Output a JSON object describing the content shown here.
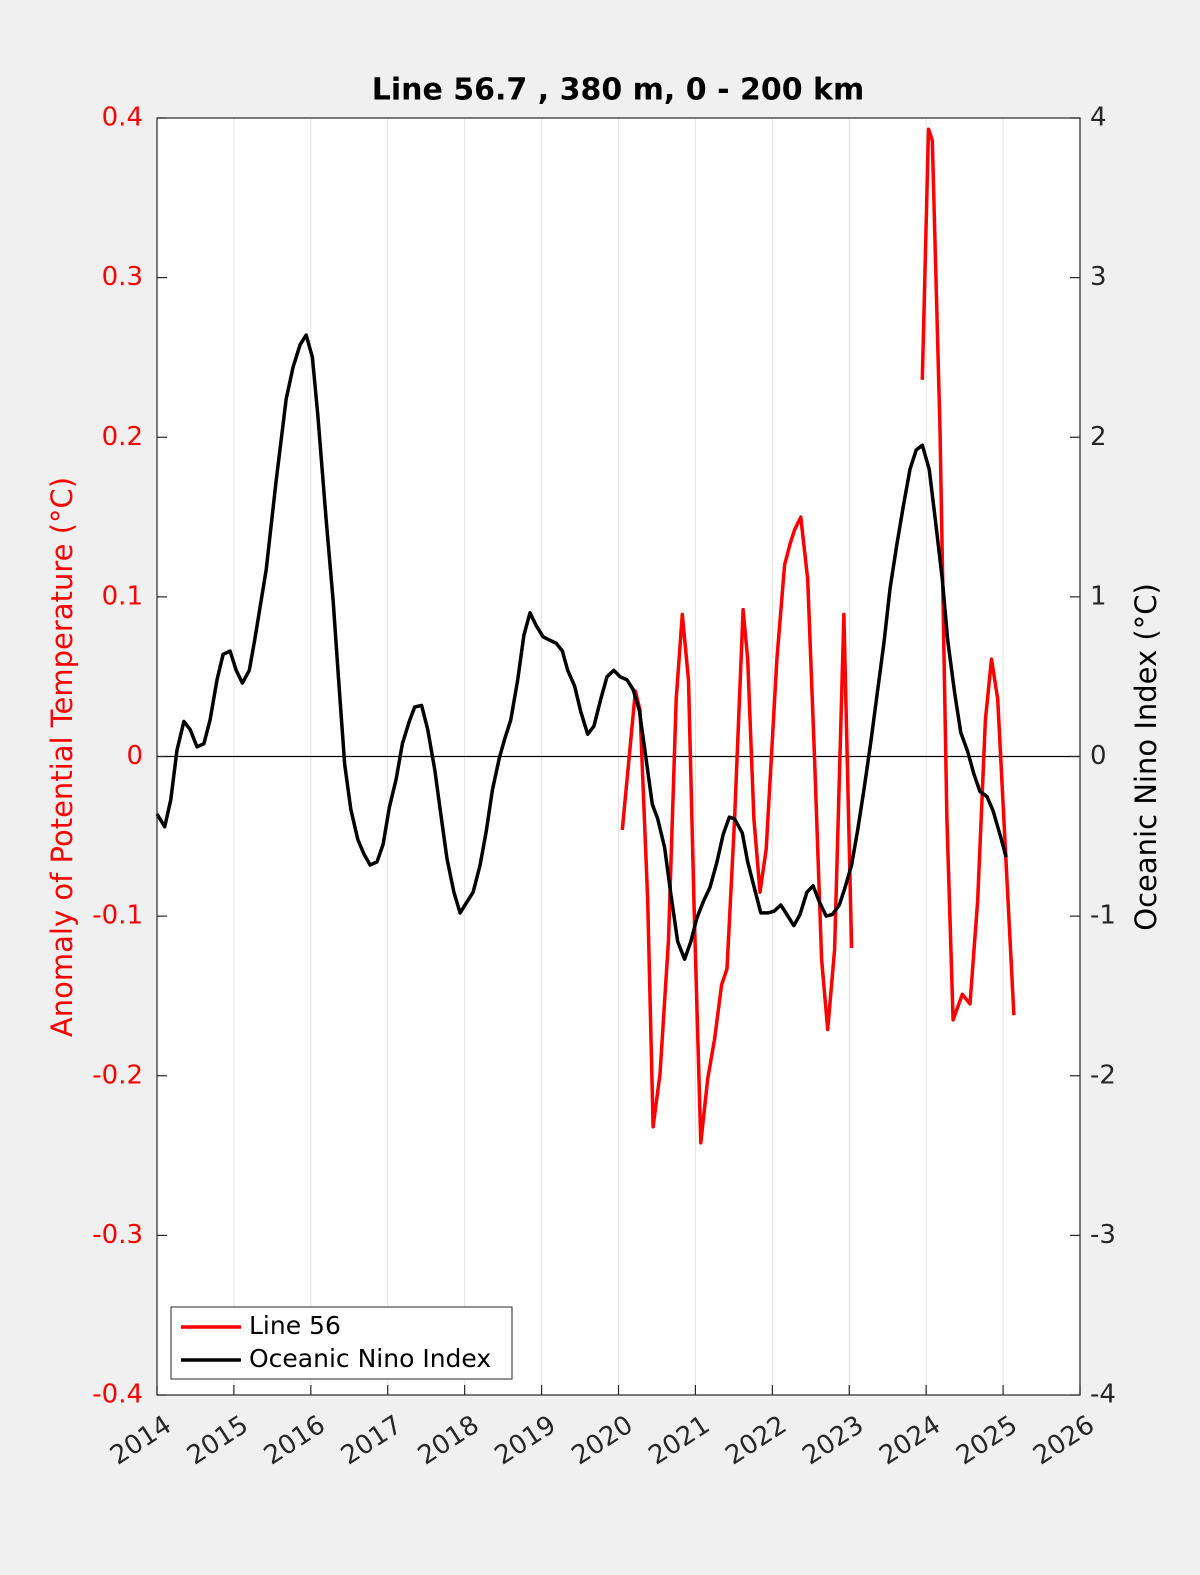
{
  "chart_data": {
    "type": "line",
    "title": "Line 56.7 , 380 m, 0 - 200 km",
    "y_label": "Anomaly of Potential Temperature (°C)",
    "y2_label": "Oceanic Nino Index (°C)",
    "xlim": [
      2014,
      2026
    ],
    "xticks": [
      2014,
      2015,
      2016,
      2017,
      2018,
      2019,
      2020,
      2021,
      2022,
      2023,
      2024,
      2025,
      2026
    ],
    "ylim": [
      -0.4,
      0.4
    ],
    "yticks": [
      -0.4,
      -0.3,
      -0.2,
      -0.1,
      0,
      0.1,
      0.2,
      0.3,
      0.4
    ],
    "y2lim": [
      -4,
      4
    ],
    "y2ticks": [
      -4,
      -3,
      -2,
      -1,
      0,
      1,
      2,
      3,
      4
    ],
    "grid": "x",
    "zero_line": true,
    "legend": "lower left",
    "y_axis_color": "#ff0000",
    "y2_axis_color": "#000000",
    "series": [
      {
        "name": "Line 56",
        "color": "#ff0000",
        "axis": "y",
        "x": [
          2020.05,
          2020.22,
          2020.28,
          2020.38,
          2020.45,
          2020.54,
          2020.65,
          2020.75,
          2020.83,
          2020.91,
          2020.98,
          2021.07,
          2021.16,
          2021.25,
          2021.34,
          2021.41,
          2021.51,
          2021.62,
          2021.68,
          2021.76,
          2021.84,
          2021.92,
          2022.06,
          2022.16,
          2022.23,
          2022.29,
          2022.37,
          2022.46,
          2022.55,
          2022.64,
          2022.72,
          2022.81,
          2022.93,
          2023.03,
          2023.5,
          2023.95,
          2024.03,
          2024.08,
          2024.18,
          2024.27,
          2024.35,
          2024.47,
          2024.57,
          2024.67,
          2024.77,
          2024.85,
          2024.93,
          2025.03,
          2025.14
        ],
        "values": [
          -0.046,
          0.041,
          0.029,
          -0.09,
          -0.232,
          -0.199,
          -0.115,
          0.036,
          0.089,
          0.048,
          -0.09,
          -0.242,
          -0.202,
          -0.177,
          -0.143,
          -0.133,
          -0.039,
          0.092,
          0.061,
          -0.039,
          -0.085,
          -0.058,
          0.061,
          0.12,
          0.133,
          0.142,
          0.15,
          0.111,
          -0.002,
          -0.127,
          -0.171,
          -0.121,
          0.089,
          -0.12,
          null,
          0.236,
          0.393,
          0.386,
          0.205,
          -0.039,
          -0.165,
          -0.149,
          -0.155,
          -0.09,
          0.023,
          0.061,
          0.036,
          -0.058,
          -0.162
        ]
      },
      {
        "name": "Oceanic Nino Index",
        "color": "#000000",
        "axis": "y2",
        "x": [
          2014.0,
          2014.1,
          2014.18,
          2014.26,
          2014.35,
          2014.43,
          2014.52,
          2014.61,
          2014.69,
          2014.78,
          2014.86,
          2014.95,
          2015.03,
          2015.11,
          2015.2,
          2015.27,
          2015.42,
          2015.55,
          2015.68,
          2015.77,
          2015.86,
          2015.94,
          2016.02,
          2016.09,
          2016.2,
          2016.29,
          2016.37,
          2016.44,
          2016.52,
          2016.61,
          2016.69,
          2016.77,
          2016.86,
          2016.94,
          2017.02,
          2017.11,
          2017.19,
          2017.28,
          2017.35,
          2017.44,
          2017.52,
          2017.61,
          2017.69,
          2017.77,
          2017.86,
          2017.94,
          2018.03,
          2018.11,
          2018.2,
          2018.28,
          2018.36,
          2018.45,
          2018.52,
          2018.6,
          2018.69,
          2018.77,
          2018.85,
          2018.93,
          2019.02,
          2019.1,
          2019.19,
          2019.27,
          2019.34,
          2019.43,
          2019.51,
          2019.6,
          2019.68,
          2019.77,
          2019.85,
          2019.94,
          2020.02,
          2020.11,
          2020.19,
          2020.27,
          2020.36,
          2020.44,
          2020.51,
          2020.6,
          2020.68,
          2020.77,
          2020.86,
          2020.94,
          2021.02,
          2021.11,
          2021.19,
          2021.28,
          2021.36,
          2021.44,
          2021.51,
          2021.61,
          2021.68,
          2021.77,
          2021.85,
          2021.94,
          2022.02,
          2022.11,
          2022.19,
          2022.28,
          2022.36,
          2022.45,
          2022.53,
          2022.61,
          2022.7,
          2022.78,
          2022.87,
          2022.94,
          2023.03,
          2023.11,
          2023.19,
          2023.28,
          2023.36,
          2023.45,
          2023.53,
          2023.62,
          2023.7,
          2023.79,
          2023.87,
          2023.95,
          2024.04,
          2024.12,
          2024.21,
          2024.28,
          2024.37,
          2024.45,
          2024.54,
          2024.62,
          2024.7,
          2024.79,
          2024.87,
          2024.96,
          2025.04
        ],
        "values": [
          -0.36,
          -0.44,
          -0.27,
          0.04,
          0.22,
          0.17,
          0.06,
          0.08,
          0.23,
          0.48,
          0.64,
          0.66,
          0.54,
          0.46,
          0.54,
          0.73,
          1.17,
          1.73,
          2.24,
          2.44,
          2.58,
          2.64,
          2.5,
          2.14,
          1.48,
          0.98,
          0.42,
          -0.05,
          -0.33,
          -0.52,
          -0.61,
          -0.68,
          -0.66,
          -0.55,
          -0.32,
          -0.14,
          0.08,
          0.22,
          0.31,
          0.32,
          0.17,
          -0.08,
          -0.36,
          -0.64,
          -0.85,
          -0.98,
          -0.91,
          -0.85,
          -0.68,
          -0.47,
          -0.21,
          -0.01,
          0.11,
          0.23,
          0.48,
          0.76,
          0.9,
          0.82,
          0.75,
          0.73,
          0.71,
          0.66,
          0.54,
          0.44,
          0.28,
          0.14,
          0.19,
          0.36,
          0.5,
          0.54,
          0.5,
          0.48,
          0.42,
          0.29,
          -0.02,
          -0.3,
          -0.39,
          -0.57,
          -0.86,
          -1.16,
          -1.27,
          -1.16,
          -1.01,
          -0.9,
          -0.82,
          -0.66,
          -0.49,
          -0.38,
          -0.39,
          -0.48,
          -0.66,
          -0.83,
          -0.98,
          -0.98,
          -0.97,
          -0.93,
          -0.99,
          -1.06,
          -0.99,
          -0.85,
          -0.81,
          -0.91,
          -1.0,
          -0.99,
          -0.93,
          -0.83,
          -0.68,
          -0.46,
          -0.21,
          0.09,
          0.38,
          0.71,
          1.05,
          1.33,
          1.56,
          1.8,
          1.92,
          1.95,
          1.8,
          1.48,
          1.11,
          0.73,
          0.4,
          0.15,
          0.03,
          -0.11,
          -0.22,
          -0.25,
          -0.34,
          -0.49,
          -0.63
        ]
      }
    ]
  }
}
